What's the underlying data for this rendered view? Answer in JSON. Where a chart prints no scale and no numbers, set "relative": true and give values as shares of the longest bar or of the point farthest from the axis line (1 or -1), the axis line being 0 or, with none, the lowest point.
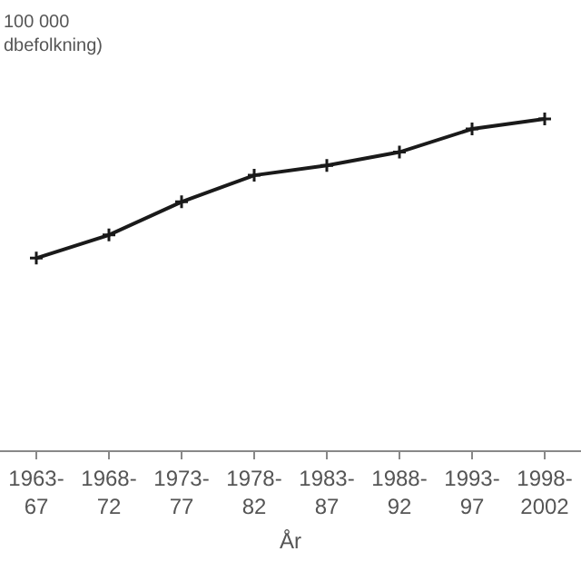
{
  "chart_data": {
    "type": "line",
    "relative": true,
    "ylabel": "100 000\ndbefolkning)",
    "xlabel": "År",
    "categories": [
      "1963-67",
      "1968-72",
      "1973-77",
      "1978-82",
      "1983-87",
      "1988-92",
      "1993-97",
      "1998-2002"
    ],
    "series": [
      {
        "color": "#1a1a1a",
        "values": [
          0.58,
          0.65,
          0.75,
          0.83,
          0.86,
          0.9,
          0.97,
          1
        ]
      }
    ],
    "marker": "cross",
    "line_style": "solid"
  }
}
